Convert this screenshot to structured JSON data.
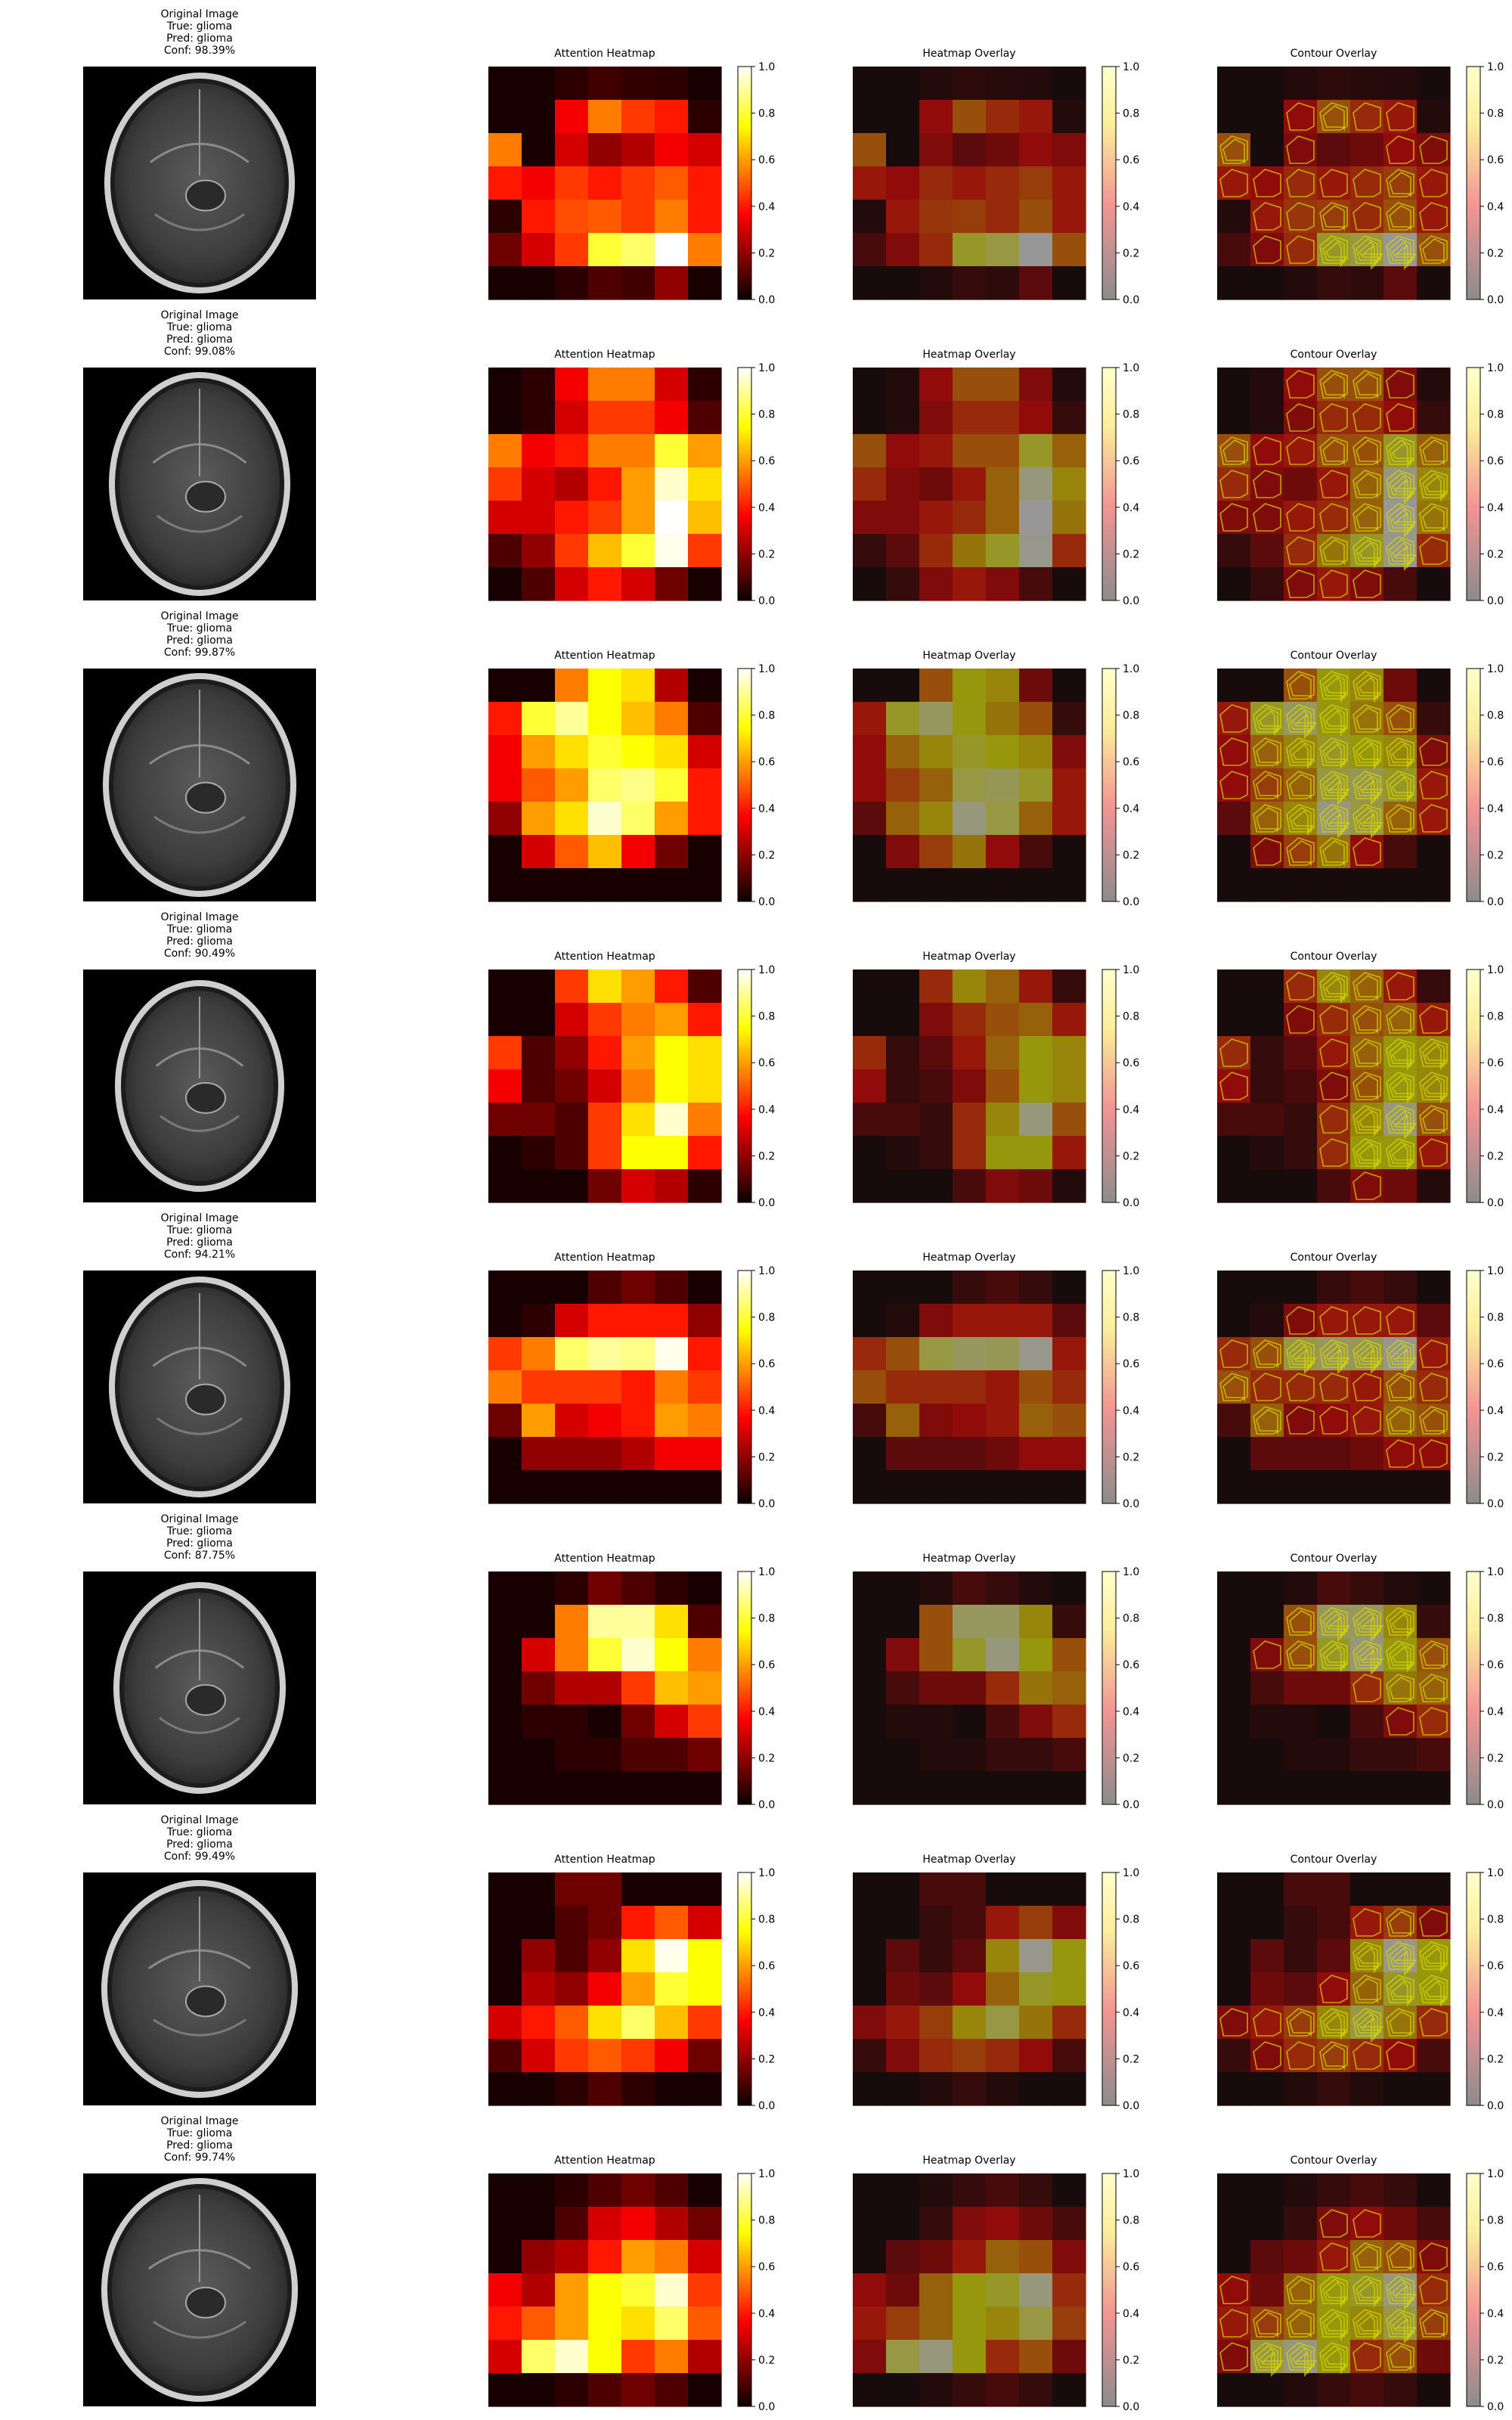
{
  "chart_data": {
    "type": "heatmap",
    "panel_titles": {
      "original": "Original Image",
      "heatmap": "Attention Heatmap",
      "overlay": "Heatmap Overlay",
      "contour": "Contour Overlay"
    },
    "colorbar_ticks": [
      "0.0",
      "0.2",
      "0.4",
      "0.6",
      "0.8",
      "1.0"
    ],
    "colorbar_range": [
      0.0,
      1.0
    ],
    "colormaps": {
      "heatmap": "hot",
      "overlay": "hot-alpha-on-gray",
      "contour": "hot-alpha-on-gray"
    },
    "rows": [
      {
        "true_label": "True: glioma",
        "pred_label": "Pred: glioma",
        "confidence": "Conf: 98.39%",
        "grid": [
          [
            0.02,
            0.02,
            0.05,
            0.08,
            0.06,
            0.05,
            0.02
          ],
          [
            0.02,
            0.02,
            0.35,
            0.55,
            0.45,
            0.4,
            0.05
          ],
          [
            0.55,
            0.02,
            0.3,
            0.2,
            0.25,
            0.35,
            0.3
          ],
          [
            0.4,
            0.35,
            0.45,
            0.4,
            0.45,
            0.5,
            0.4
          ],
          [
            0.05,
            0.4,
            0.48,
            0.5,
            0.45,
            0.55,
            0.4
          ],
          [
            0.15,
            0.3,
            0.45,
            0.8,
            0.85,
            1.0,
            0.55
          ],
          [
            0.02,
            0.02,
            0.05,
            0.1,
            0.08,
            0.2,
            0.02
          ]
        ]
      },
      {
        "true_label": "True: glioma",
        "pred_label": "Pred: glioma",
        "confidence": "Conf: 99.08%",
        "grid": [
          [
            0.02,
            0.05,
            0.35,
            0.55,
            0.55,
            0.3,
            0.05
          ],
          [
            0.02,
            0.05,
            0.3,
            0.45,
            0.45,
            0.35,
            0.1
          ],
          [
            0.55,
            0.35,
            0.4,
            0.55,
            0.55,
            0.8,
            0.6
          ],
          [
            0.45,
            0.3,
            0.25,
            0.4,
            0.6,
            0.95,
            0.7
          ],
          [
            0.3,
            0.3,
            0.4,
            0.45,
            0.6,
            1.0,
            0.65
          ],
          [
            0.1,
            0.2,
            0.45,
            0.65,
            0.8,
            0.98,
            0.45
          ],
          [
            0.02,
            0.1,
            0.3,
            0.4,
            0.3,
            0.15,
            0.02
          ]
        ]
      },
      {
        "true_label": "True: glioma",
        "pred_label": "Pred: glioma",
        "confidence": "Conf: 99.87%",
        "grid": [
          [
            0.02,
            0.02,
            0.55,
            0.75,
            0.7,
            0.25,
            0.02
          ],
          [
            0.4,
            0.8,
            0.9,
            0.75,
            0.65,
            0.55,
            0.1
          ],
          [
            0.35,
            0.6,
            0.7,
            0.8,
            0.75,
            0.7,
            0.3
          ],
          [
            0.35,
            0.5,
            0.6,
            0.85,
            0.88,
            0.8,
            0.4
          ],
          [
            0.2,
            0.6,
            0.7,
            0.95,
            0.85,
            0.6,
            0.4
          ],
          [
            0.02,
            0.3,
            0.5,
            0.65,
            0.35,
            0.15,
            0.02
          ],
          [
            0.02,
            0.02,
            0.02,
            0.02,
            0.02,
            0.02,
            0.02
          ]
        ]
      },
      {
        "true_label": "True: glioma",
        "pred_label": "Pred: glioma",
        "confidence": "Conf: 90.49%",
        "grid": [
          [
            0.02,
            0.02,
            0.45,
            0.7,
            0.6,
            0.4,
            0.1
          ],
          [
            0.02,
            0.02,
            0.3,
            0.45,
            0.55,
            0.6,
            0.4
          ],
          [
            0.45,
            0.1,
            0.2,
            0.4,
            0.6,
            0.75,
            0.7
          ],
          [
            0.35,
            0.1,
            0.15,
            0.3,
            0.55,
            0.75,
            0.7
          ],
          [
            0.15,
            0.15,
            0.1,
            0.45,
            0.7,
            0.95,
            0.55
          ],
          [
            0.02,
            0.05,
            0.1,
            0.45,
            0.75,
            0.75,
            0.4
          ],
          [
            0.02,
            0.02,
            0.02,
            0.15,
            0.3,
            0.25,
            0.05
          ]
        ]
      },
      {
        "true_label": "True: glioma",
        "pred_label": "Pred: glioma",
        "confidence": "Conf: 94.21%",
        "grid": [
          [
            0.02,
            0.02,
            0.02,
            0.1,
            0.15,
            0.1,
            0.02
          ],
          [
            0.02,
            0.05,
            0.3,
            0.4,
            0.4,
            0.4,
            0.2
          ],
          [
            0.45,
            0.55,
            0.85,
            0.9,
            0.88,
            0.98,
            0.4
          ],
          [
            0.55,
            0.45,
            0.45,
            0.45,
            0.4,
            0.55,
            0.45
          ],
          [
            0.15,
            0.6,
            0.3,
            0.35,
            0.4,
            0.6,
            0.55
          ],
          [
            0.02,
            0.2,
            0.2,
            0.2,
            0.25,
            0.35,
            0.35
          ],
          [
            0.02,
            0.02,
            0.02,
            0.02,
            0.02,
            0.02,
            0.02
          ]
        ]
      },
      {
        "true_label": "True: glioma",
        "pred_label": "Pred: glioma",
        "confidence": "Conf: 87.75%",
        "grid": [
          [
            0.02,
            0.02,
            0.05,
            0.15,
            0.1,
            0.05,
            0.02
          ],
          [
            0.02,
            0.02,
            0.55,
            0.9,
            0.9,
            0.7,
            0.1
          ],
          [
            0.02,
            0.3,
            0.55,
            0.8,
            0.95,
            0.75,
            0.55
          ],
          [
            0.02,
            0.15,
            0.25,
            0.25,
            0.45,
            0.65,
            0.6
          ],
          [
            0.02,
            0.05,
            0.05,
            0.02,
            0.15,
            0.3,
            0.45
          ],
          [
            0.02,
            0.02,
            0.05,
            0.05,
            0.1,
            0.1,
            0.15
          ],
          [
            0.02,
            0.02,
            0.02,
            0.02,
            0.02,
            0.02,
            0.02
          ]
        ]
      },
      {
        "true_label": "True: glioma",
        "pred_label": "Pred: glioma",
        "confidence": "Conf: 99.49%",
        "grid": [
          [
            0.02,
            0.02,
            0.15,
            0.15,
            0.02,
            0.02,
            0.02
          ],
          [
            0.02,
            0.02,
            0.1,
            0.15,
            0.4,
            0.5,
            0.3
          ],
          [
            0.02,
            0.2,
            0.1,
            0.2,
            0.7,
            0.98,
            0.75
          ],
          [
            0.02,
            0.25,
            0.2,
            0.35,
            0.6,
            0.8,
            0.75
          ],
          [
            0.3,
            0.4,
            0.5,
            0.7,
            0.85,
            0.65,
            0.45
          ],
          [
            0.1,
            0.3,
            0.45,
            0.5,
            0.45,
            0.35,
            0.15
          ],
          [
            0.02,
            0.02,
            0.05,
            0.1,
            0.05,
            0.02,
            0.02
          ]
        ]
      },
      {
        "true_label": "True: glioma",
        "pred_label": "Pred: glioma",
        "confidence": "Conf: 99.74%",
        "grid": [
          [
            0.02,
            0.02,
            0.05,
            0.1,
            0.15,
            0.1,
            0.02
          ],
          [
            0.02,
            0.02,
            0.1,
            0.3,
            0.35,
            0.25,
            0.15
          ],
          [
            0.02,
            0.2,
            0.25,
            0.4,
            0.6,
            0.55,
            0.3
          ],
          [
            0.35,
            0.25,
            0.6,
            0.75,
            0.8,
            0.95,
            0.45
          ],
          [
            0.4,
            0.5,
            0.6,
            0.75,
            0.7,
            0.85,
            0.5
          ],
          [
            0.3,
            0.85,
            0.95,
            0.75,
            0.45,
            0.55,
            0.25
          ],
          [
            0.02,
            0.02,
            0.05,
            0.1,
            0.15,
            0.1,
            0.02
          ]
        ]
      }
    ]
  }
}
